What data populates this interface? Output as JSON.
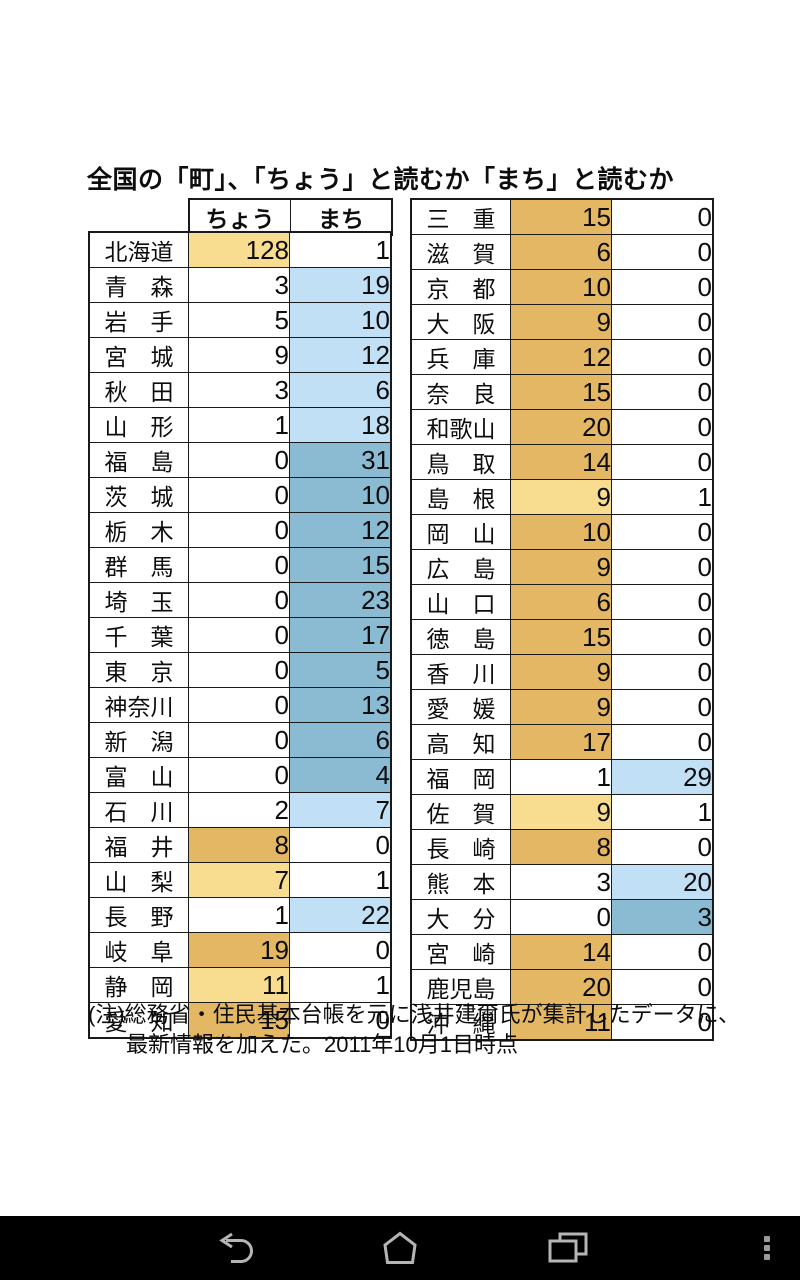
{
  "chart_data": {
    "type": "table",
    "title": "全国の「町」、「ちょう」と読むか「まち」と読むか",
    "value_columns": [
      "ちょう",
      "まち"
    ],
    "left_rows": [
      {
        "pref": "北海道",
        "chou": 128,
        "machi": 1
      },
      {
        "pref": "青森",
        "chou": 3,
        "machi": 19
      },
      {
        "pref": "岩手",
        "chou": 5,
        "machi": 10
      },
      {
        "pref": "宮城",
        "chou": 9,
        "machi": 12
      },
      {
        "pref": "秋田",
        "chou": 3,
        "machi": 6
      },
      {
        "pref": "山形",
        "chou": 1,
        "machi": 18
      },
      {
        "pref": "福島",
        "chou": 0,
        "machi": 31
      },
      {
        "pref": "茨城",
        "chou": 0,
        "machi": 10
      },
      {
        "pref": "栃木",
        "chou": 0,
        "machi": 12
      },
      {
        "pref": "群馬",
        "chou": 0,
        "machi": 15
      },
      {
        "pref": "埼玉",
        "chou": 0,
        "machi": 23
      },
      {
        "pref": "千葉",
        "chou": 0,
        "machi": 17
      },
      {
        "pref": "東京",
        "chou": 0,
        "machi": 5
      },
      {
        "pref": "神奈川",
        "chou": 0,
        "machi": 13
      },
      {
        "pref": "新潟",
        "chou": 0,
        "machi": 6
      },
      {
        "pref": "富山",
        "chou": 0,
        "machi": 4
      },
      {
        "pref": "石川",
        "chou": 2,
        "machi": 7
      },
      {
        "pref": "福井",
        "chou": 8,
        "machi": 0
      },
      {
        "pref": "山梨",
        "chou": 7,
        "machi": 1
      },
      {
        "pref": "長野",
        "chou": 1,
        "machi": 22
      },
      {
        "pref": "岐阜",
        "chou": 19,
        "machi": 0
      },
      {
        "pref": "静岡",
        "chou": 11,
        "machi": 1
      },
      {
        "pref": "愛知",
        "chou": 15,
        "machi": 0
      }
    ],
    "right_rows": [
      {
        "pref": "三重",
        "chou": 15,
        "machi": 0
      },
      {
        "pref": "滋賀",
        "chou": 6,
        "machi": 0
      },
      {
        "pref": "京都",
        "chou": 10,
        "machi": 0
      },
      {
        "pref": "大阪",
        "chou": 9,
        "machi": 0
      },
      {
        "pref": "兵庫",
        "chou": 12,
        "machi": 0
      },
      {
        "pref": "奈良",
        "chou": 15,
        "machi": 0
      },
      {
        "pref": "和歌山",
        "chou": 20,
        "machi": 0
      },
      {
        "pref": "鳥取",
        "chou": 14,
        "machi": 0
      },
      {
        "pref": "島根",
        "chou": 9,
        "machi": 1
      },
      {
        "pref": "岡山",
        "chou": 10,
        "machi": 0
      },
      {
        "pref": "広島",
        "chou": 9,
        "machi": 0
      },
      {
        "pref": "山口",
        "chou": 6,
        "machi": 0
      },
      {
        "pref": "徳島",
        "chou": 15,
        "machi": 0
      },
      {
        "pref": "香川",
        "chou": 9,
        "machi": 0
      },
      {
        "pref": "愛媛",
        "chou": 9,
        "machi": 0
      },
      {
        "pref": "高知",
        "chou": 17,
        "machi": 0
      },
      {
        "pref": "福岡",
        "chou": 1,
        "machi": 29
      },
      {
        "pref": "佐賀",
        "chou": 9,
        "machi": 1
      },
      {
        "pref": "長崎",
        "chou": 8,
        "machi": 0
      },
      {
        "pref": "熊本",
        "chou": 3,
        "machi": 20
      },
      {
        "pref": "大分",
        "chou": 0,
        "machi": 3
      },
      {
        "pref": "宮崎",
        "chou": 14,
        "machi": 0
      },
      {
        "pref": "鹿児島",
        "chou": 20,
        "machi": 0
      },
      {
        "pref": "沖縄",
        "chou": 11,
        "machi": 0
      }
    ]
  },
  "note": {
    "line1": "(注)総務省・住民基本台帳を元に浅井建爾氏が集計したデータに、",
    "line2": "最新情報を加えた。2011年10月1日時点"
  },
  "colors": {
    "chou_all": "#e3b763",
    "chou_major": "#f8dd90",
    "machi_all": "#8bbad3",
    "machi_major": "#c2e0f5",
    "border": "#1a1a1a",
    "nav_bg": "#000000",
    "nav_icon": "#b5b5b5"
  }
}
